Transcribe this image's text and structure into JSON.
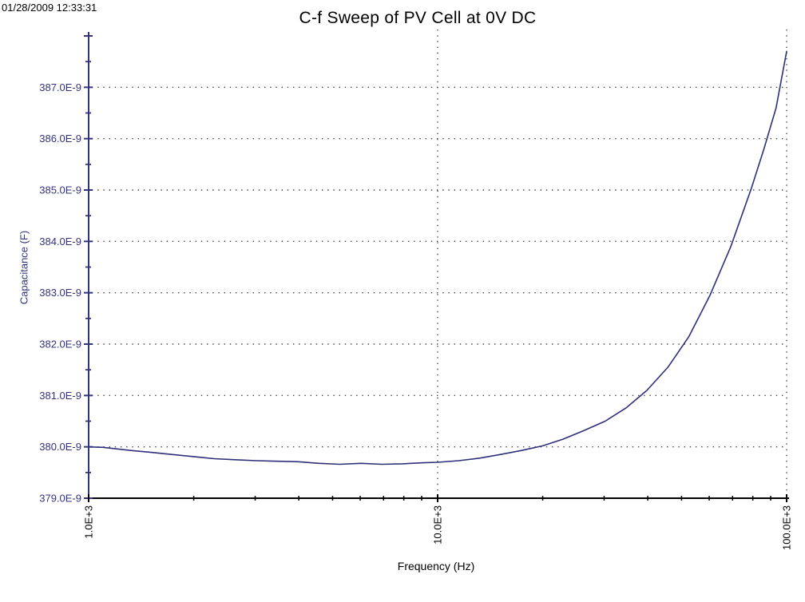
{
  "header": {
    "timestamp": "01/28/2009 12:33:31"
  },
  "chart_data": {
    "type": "line",
    "title": "C-f Sweep of PV Cell at 0V DC",
    "xlabel": "Frequency (Hz)",
    "ylabel": "Capacitance (F)",
    "x_axis": {
      "scale": "log",
      "min_hz": 1000,
      "max_hz": 100000,
      "major_ticks": [
        {
          "hz": 1000,
          "label": "1.0E+3"
        },
        {
          "hz": 10000,
          "label": "10.0E+3"
        },
        {
          "hz": 100000,
          "label": "100.0E+3"
        }
      ],
      "minor_tick_multiples": [
        2,
        3,
        4,
        5,
        6,
        7,
        8,
        9
      ]
    },
    "y_axis": {
      "unit": "F",
      "values_scale": "E-9",
      "min": 379.0,
      "max": 388.0,
      "major_step": 1.0,
      "minor_step": 0.5,
      "major_ticks": [
        {
          "value": 379.0,
          "label": "379.0E-9"
        },
        {
          "value": 380.0,
          "label": "380.0E-9"
        },
        {
          "value": 381.0,
          "label": "381.0E-9"
        },
        {
          "value": 382.0,
          "label": "382.0E-9"
        },
        {
          "value": 383.0,
          "label": "383.0E-9"
        },
        {
          "value": 384.0,
          "label": "384.0E-9"
        },
        {
          "value": 385.0,
          "label": "385.0E-9"
        },
        {
          "value": 386.0,
          "label": "386.0E-9"
        },
        {
          "value": 387.0,
          "label": "387.0E-9"
        }
      ]
    },
    "grid": {
      "style": "dotted",
      "horizontal_at": [
        380,
        381,
        382,
        383,
        384,
        385,
        386,
        387
      ],
      "vertical_at_hz": [
        10000,
        100000
      ]
    },
    "series": [
      {
        "name": "capacitance-vs-frequency",
        "color": "#2f2f7a",
        "points_hz_e9": [
          [
            1000,
            380.0
          ],
          [
            1100,
            379.99
          ],
          [
            1320,
            379.93
          ],
          [
            1520,
            379.89
          ],
          [
            1740,
            379.85
          ],
          [
            2000,
            379.81
          ],
          [
            2290,
            379.77
          ],
          [
            2630,
            379.75
          ],
          [
            3020,
            379.73
          ],
          [
            3470,
            379.72
          ],
          [
            3980,
            379.71
          ],
          [
            4570,
            379.68
          ],
          [
            5250,
            379.66
          ],
          [
            6030,
            379.68
          ],
          [
            6920,
            379.66
          ],
          [
            7940,
            379.67
          ],
          [
            9120,
            379.69
          ],
          [
            10000,
            379.7
          ],
          [
            11500,
            379.73
          ],
          [
            13200,
            379.78
          ],
          [
            15100,
            379.85
          ],
          [
            17400,
            379.93
          ],
          [
            20000,
            380.02
          ],
          [
            22900,
            380.15
          ],
          [
            26300,
            380.32
          ],
          [
            30200,
            380.5
          ],
          [
            34700,
            380.76
          ],
          [
            39800,
            381.1
          ],
          [
            45700,
            381.55
          ],
          [
            52500,
            382.15
          ],
          [
            60300,
            382.95
          ],
          [
            69200,
            383.9
          ],
          [
            79400,
            385.05
          ],
          [
            86100,
            385.8
          ],
          [
            93300,
            386.6
          ],
          [
            100000,
            387.7
          ]
        ]
      }
    ]
  },
  "colors": {
    "background": "#ffffff",
    "y_axis": "#333380",
    "x_axis": "#000000",
    "grid_dots": "#444444",
    "title_text": "#000000",
    "curve": "#2f2f7a"
  }
}
